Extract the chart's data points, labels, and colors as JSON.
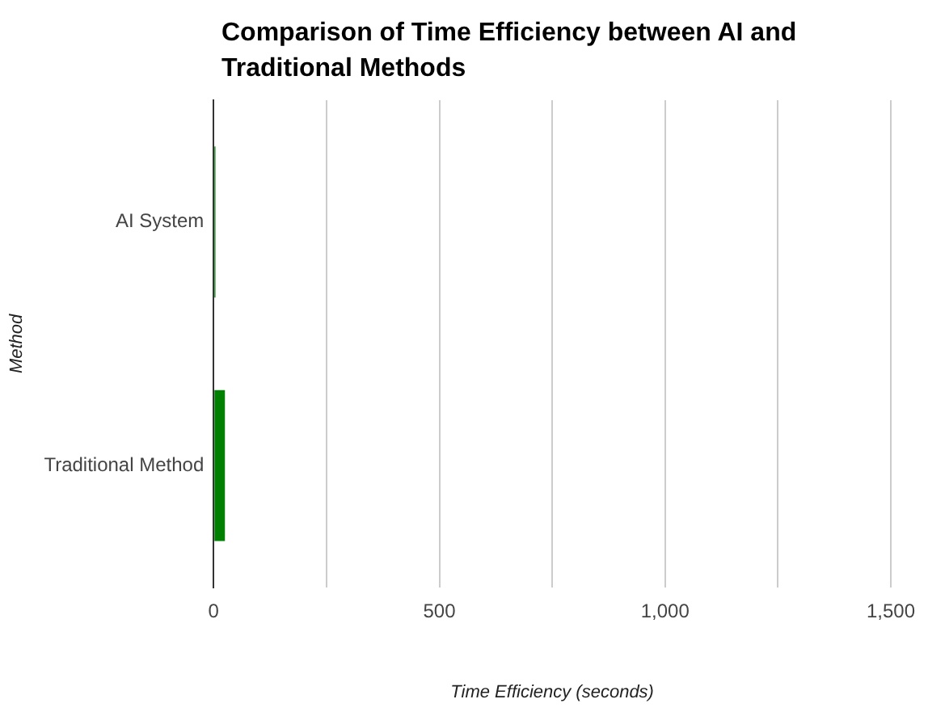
{
  "chart_data": {
    "type": "bar",
    "orientation": "horizontal",
    "title": "Comparison of Time Efficiency between AI and Traditional Methods",
    "xlabel": "Time Efficiency (seconds)",
    "ylabel": "Method",
    "categories": [
      "AI System",
      "Traditional Method"
    ],
    "series": [
      {
        "color": "#008000",
        "values": [
          4,
          25
        ]
      }
    ],
    "xlim": [
      0,
      1500
    ],
    "xticks": [
      0,
      {
        "value": 250,
        "label": null
      },
      {
        "value": 500,
        "label": "500"
      },
      {
        "value": 750,
        "label": null
      },
      {
        "value": 1000,
        "label": "1,000"
      },
      {
        "value": 1250,
        "label": null
      },
      {
        "value": 1500,
        "label": "1,500"
      }
    ],
    "grid": "x",
    "legend": false
  }
}
